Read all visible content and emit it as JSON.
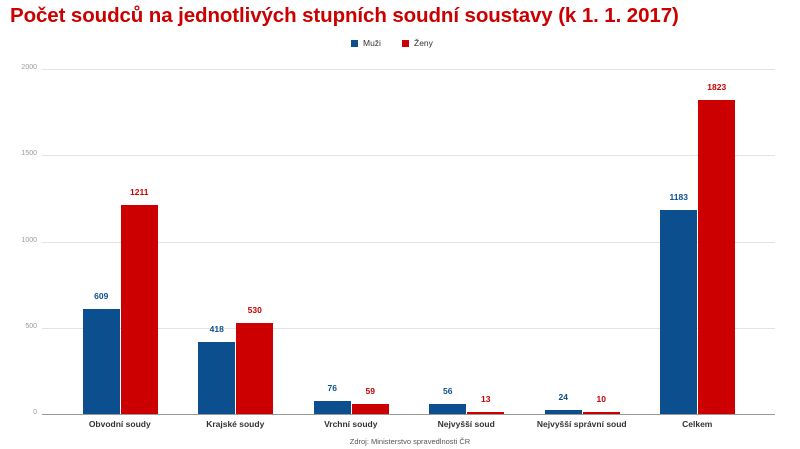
{
  "title": "Počet soudců na jednotlivých stupních soudní soustavy (k 1. 1. 2017)",
  "source": "Zdroj: Ministerstvo spravedlnosti ČR",
  "colors": {
    "muzi": "#0c4f8f",
    "zeny": "#cc0000",
    "title": "#cc0000"
  },
  "legend": [
    {
      "label": "Muži",
      "color": "#0c4f8f"
    },
    {
      "label": "Ženy",
      "color": "#cc0000"
    }
  ],
  "chart_data": {
    "type": "bar",
    "title": "Počet soudců na jednotlivých stupních soudní soustavy (k 1. 1. 2017)",
    "xlabel": "",
    "ylabel": "",
    "ylim": [
      0,
      2000
    ],
    "yticks": [
      0,
      500,
      1000,
      1500,
      2000
    ],
    "grid": true,
    "legend_position": "top",
    "categories": [
      "Obvodní soudy",
      "Krajské soudy",
      "Vrchní soudy",
      "Nejvyšší soud",
      "Nejvyšší správní soud",
      "Celkem"
    ],
    "series": [
      {
        "name": "Muži",
        "color": "#0c4f8f",
        "values": [
          609,
          418,
          76,
          56,
          24,
          1183
        ]
      },
      {
        "name": "Ženy",
        "color": "#cc0000",
        "values": [
          1211,
          530,
          59,
          13,
          10,
          1823
        ]
      }
    ],
    "annotations": "Zdroj: Ministerstvo spravedlnosti ČR"
  }
}
